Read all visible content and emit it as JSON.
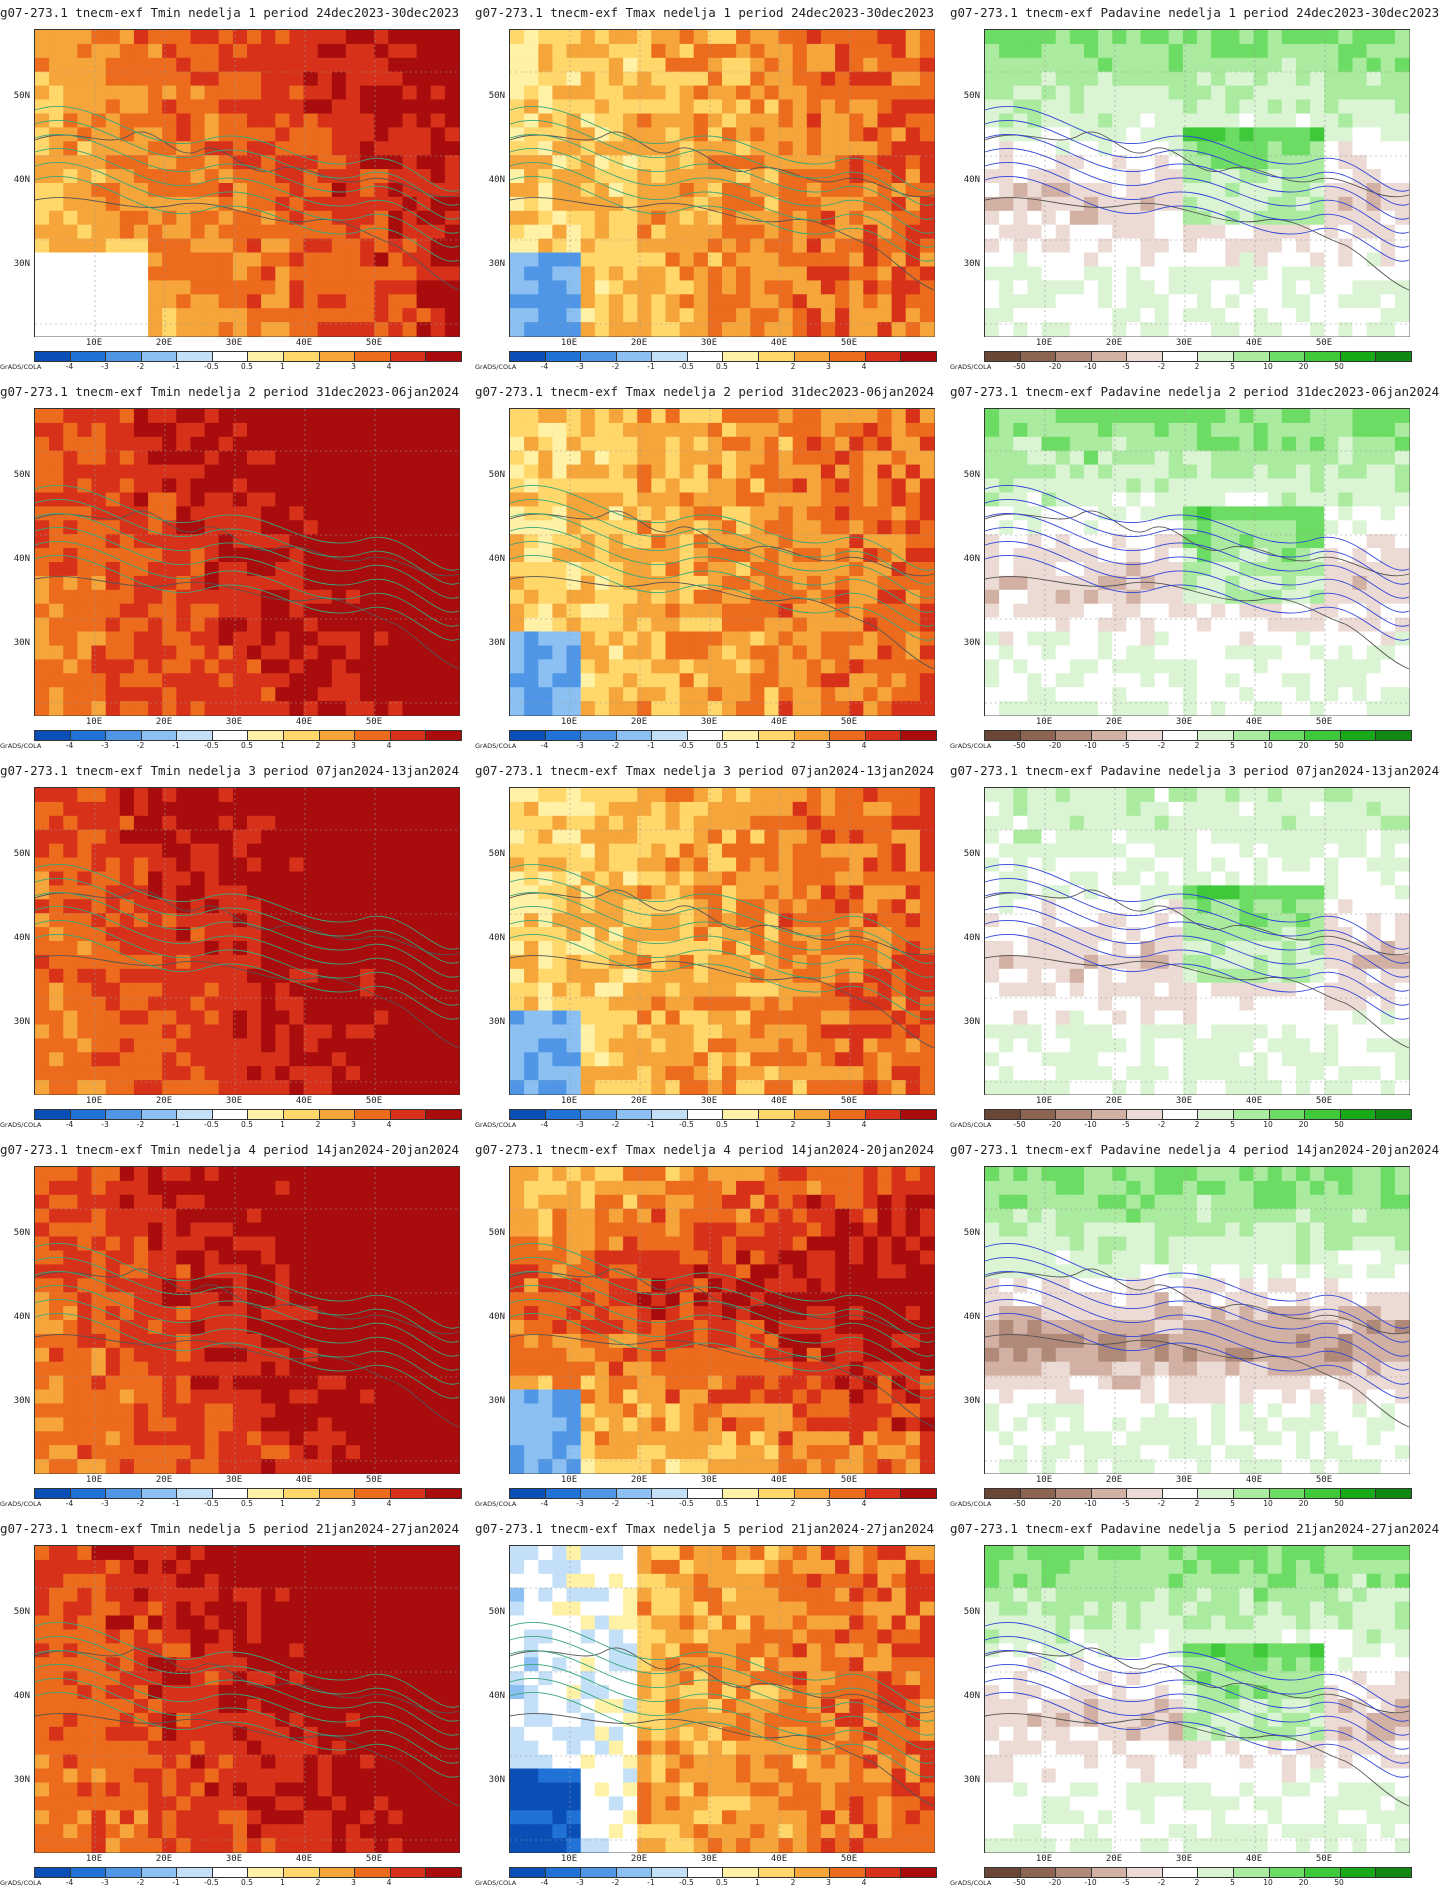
{
  "common": {
    "ylabels": [
      "50N",
      "40N",
      "30N"
    ],
    "xlabels": [
      "10E",
      "20E",
      "30E",
      "40E",
      "50E"
    ],
    "grads_credit": "GrADS/COLA"
  },
  "legends": {
    "temp": {
      "labels": [
        "-4",
        "-3",
        "-2",
        "-1",
        "-0.5",
        "0.5",
        "1",
        "2",
        "3",
        "4"
      ],
      "colors": [
        "#0a4fb5",
        "#2172d6",
        "#4f97e6",
        "#8cc0f2",
        "#c3e0f8",
        "#ffffff",
        "#fff1a6",
        "#ffd76a",
        "#f5a53a",
        "#ec6b1c",
        "#d8311a",
        "#a80c0c"
      ]
    },
    "precip": {
      "labels": [
        "-50",
        "-20",
        "-10",
        "-5",
        "-2",
        "2",
        "5",
        "10",
        "20",
        "50"
      ],
      "colors": [
        "#6a4637",
        "#8d6452",
        "#b08979",
        "#d2b0a4",
        "#ecdad4",
        "#ffffff",
        "#daf4d4",
        "#aaeba0",
        "#6cdc64",
        "#3ec83a",
        "#18a918",
        "#118811"
      ]
    }
  },
  "panels": [
    {
      "title": "g07-273.1 tnecm-exf Tmin nedelja 1 period 24dec2023-30dec2023",
      "variable": "Tmin",
      "row": 0
    },
    {
      "title": "g07-273.1 tnecm-exf Tmax nedelja 1 period 24dec2023-30dec2023",
      "variable": "Tmax",
      "row": 0
    },
    {
      "title": "g07-273.1 tnecm-exf Padavine nedelja 1 period 24dec2023-30dec2023",
      "variable": "Padavine",
      "row": 0
    },
    {
      "title": "g07-273.1 tnecm-exf Tmin nedelja 2 period 31dec2023-06jan2024",
      "variable": "Tmin",
      "row": 1
    },
    {
      "title": "g07-273.1 tnecm-exf Tmax nedelja 2 period 31dec2023-06jan2024",
      "variable": "Tmax",
      "row": 1
    },
    {
      "title": "g07-273.1 tnecm-exf Padavine nedelja 2 period 31dec2023-06jan2024",
      "variable": "Padavine",
      "row": 1
    },
    {
      "title": "g07-273.1 tnecm-exf Tmin nedelja 3 period 07jan2024-13jan2024",
      "variable": "Tmin",
      "row": 2
    },
    {
      "title": "g07-273.1 tnecm-exf Tmax nedelja 3 period 07jan2024-13jan2024",
      "variable": "Tmax",
      "row": 2
    },
    {
      "title": "g07-273.1 tnecm-exf Padavine nedelja 3 period 07jan2024-13jan2024",
      "variable": "Padavine",
      "row": 2
    },
    {
      "title": "g07-273.1 tnecm-exf Tmin nedelja 4 period 14jan2024-20jan2024",
      "variable": "Tmin",
      "row": 3
    },
    {
      "title": "g07-273.1 tnecm-exf Tmax nedelja 4 period 14jan2024-20jan2024",
      "variable": "Tmax",
      "row": 3
    },
    {
      "title": "g07-273.1 tnecm-exf Padavine nedelja 4 period 14jan2024-20jan2024",
      "variable": "Padavine",
      "row": 3
    },
    {
      "title": "g07-273.1 tnecm-exf Tmin nedelja 5 period 21jan2024-27jan2024",
      "variable": "Tmin",
      "row": 4
    },
    {
      "title": "g07-273.1 tnecm-exf Tmax nedelja 5 period 21jan2024-27jan2024",
      "variable": "Tmax",
      "row": 4
    },
    {
      "title": "g07-273.1 tnecm-exf Padavine nedelja 5 period 21jan2024-27jan2024",
      "variable": "Padavine",
      "row": 4
    }
  ]
}
